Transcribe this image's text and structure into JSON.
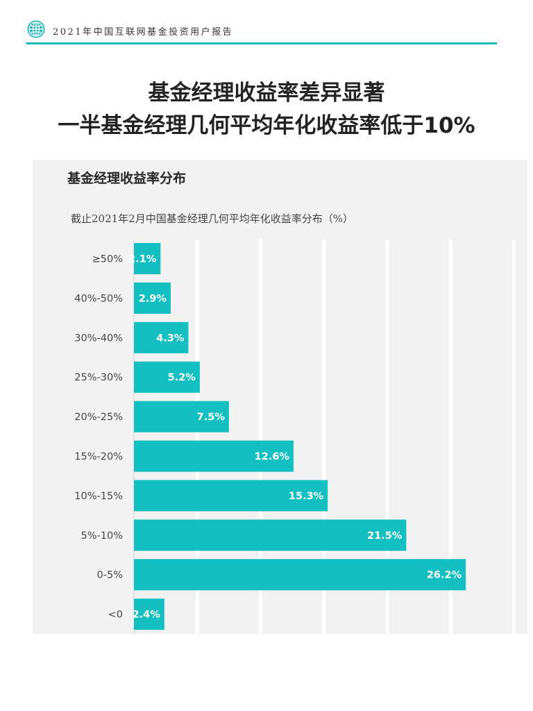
{
  "header": {
    "report_title": "2021年中国互联网基金投资用户报告",
    "icon": "globe-icon",
    "accent_color": "#14b8b9"
  },
  "headline": {
    "line1": "基金经理收益率差异显著",
    "line2": "一半基金经理几何平均年化收益率低于10%"
  },
  "panel": {
    "title": "基金经理收益率分布",
    "background_color": "#f2f2f2"
  },
  "chart_data": {
    "type": "bar",
    "orientation": "horizontal",
    "subtitle": "截止2021年2月中国基金经理几何平均年化收益率分布（%）",
    "categories": [
      "≥50%",
      "40%-50%",
      "30%-40%",
      "25%-30%",
      "20%-25%",
      "15%-20%",
      "10%-15%",
      "5%-10%",
      "0-5%",
      "<0"
    ],
    "values": [
      2.1,
      2.9,
      4.3,
      5.2,
      7.5,
      12.6,
      15.3,
      21.5,
      26.2,
      2.4
    ],
    "data_labels": [
      "2.1%",
      "2.9%",
      "4.3%",
      "5.2%",
      "7.5%",
      "12.6%",
      "15.3%",
      "21.5%",
      "26.2%",
      "2.4%"
    ],
    "xlim": [
      0,
      30
    ],
    "grid": true,
    "bar_color": "#14bfc1",
    "label_color": "#ffffff"
  }
}
